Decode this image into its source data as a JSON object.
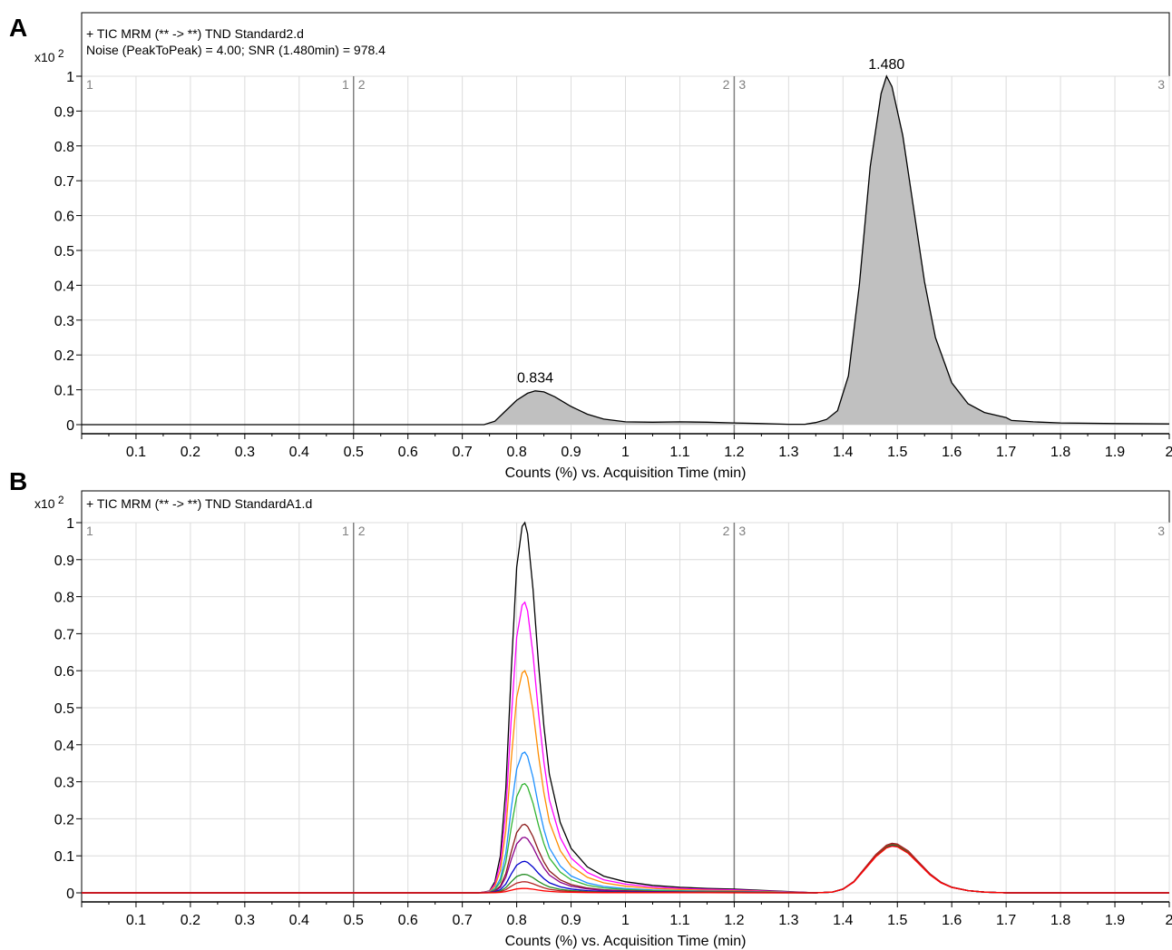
{
  "chart_data": [
    {
      "panel_label": "A",
      "type": "line",
      "title": "+ TIC MRM (** -> **) TND Standard2.d",
      "subtitle": "Noise (PeakToPeak) = 4.00; SNR (1.480min) = 978.4",
      "title_color": "#000000",
      "y_multiplier": "x10",
      "y_exponent": "2",
      "xlabel": "Counts (%) vs. Acquisition Time (min)",
      "xlim": [
        0,
        2
      ],
      "ylim": [
        -0.02,
        1.03
      ],
      "x_ticks": [
        "0.1",
        "0.2",
        "0.3",
        "0.4",
        "0.5",
        "0.6",
        "0.7",
        "0.8",
        "0.9",
        "1",
        "1.1",
        "1.2",
        "1.3",
        "1.4",
        "1.5",
        "1.6",
        "1.7",
        "1.8",
        "1.9",
        "2"
      ],
      "y_ticks": [
        "0",
        "0.1",
        "0.2",
        "0.3",
        "0.4",
        "0.5",
        "0.6",
        "0.7",
        "0.8",
        "0.9",
        "1"
      ],
      "grid": true,
      "filled": true,
      "fill_color": "#c0c0c0",
      "segment_boundaries": [
        0.5,
        1.2
      ],
      "segment_markers": [
        {
          "x": 0,
          "label": "1",
          "side": "right"
        },
        {
          "x": 0.5,
          "label": "1",
          "side": "left"
        },
        {
          "x": 0.5,
          "label": "2",
          "side": "right"
        },
        {
          "x": 1.2,
          "label": "2",
          "side": "left"
        },
        {
          "x": 1.2,
          "label": "3",
          "side": "right"
        },
        {
          "x": 2,
          "label": "3",
          "side": "left"
        }
      ],
      "annotations": [
        {
          "x": 0.834,
          "y": 0.1,
          "text": "0.834"
        },
        {
          "x": 1.48,
          "y": 1.0,
          "text": "1.480"
        }
      ],
      "series": [
        {
          "color": "#000000",
          "x": [
            0,
            0.5,
            0.7,
            0.74,
            0.76,
            0.78,
            0.8,
            0.82,
            0.834,
            0.85,
            0.87,
            0.9,
            0.93,
            0.96,
            1.0,
            1.05,
            1.1,
            1.15,
            1.2,
            1.25,
            1.3,
            1.33,
            1.35,
            1.37,
            1.39,
            1.41,
            1.43,
            1.45,
            1.47,
            1.48,
            1.49,
            1.51,
            1.53,
            1.55,
            1.57,
            1.6,
            1.63,
            1.66,
            1.7,
            1.71,
            1.75,
            1.8,
            1.9,
            2.0
          ],
          "y": [
            0,
            0,
            0,
            0,
            0.01,
            0.04,
            0.07,
            0.09,
            0.097,
            0.094,
            0.08,
            0.052,
            0.03,
            0.016,
            0.008,
            0.007,
            0.008,
            0.007,
            0.005,
            0.003,
            0.001,
            0.001,
            0.006,
            0.015,
            0.04,
            0.14,
            0.4,
            0.74,
            0.95,
            1.0,
            0.97,
            0.83,
            0.62,
            0.41,
            0.25,
            0.12,
            0.06,
            0.035,
            0.02,
            0.012,
            0.008,
            0.005,
            0.003,
            0.002
          ]
        }
      ]
    },
    {
      "panel_label": "B",
      "type": "line",
      "title": "+ TIC MRM (** -> **) TND StandardA1.d",
      "title_color": "#ff0000",
      "y_multiplier": "x10",
      "y_exponent": "2",
      "xlabel": "Counts (%) vs. Acquisition Time (min)",
      "xlim": [
        0,
        2
      ],
      "ylim": [
        -0.02,
        1.03
      ],
      "x_ticks": [
        "0.1",
        "0.2",
        "0.3",
        "0.4",
        "0.5",
        "0.6",
        "0.7",
        "0.8",
        "0.9",
        "1",
        "1.1",
        "1.2",
        "1.3",
        "1.4",
        "1.5",
        "1.6",
        "1.7",
        "1.8",
        "1.9",
        "2"
      ],
      "y_ticks": [
        "0",
        "0.1",
        "0.2",
        "0.3",
        "0.4",
        "0.5",
        "0.6",
        "0.7",
        "0.8",
        "0.9",
        "1"
      ],
      "grid": true,
      "filled": false,
      "segment_boundaries": [
        0.5,
        1.2
      ],
      "segment_markers": [
        {
          "x": 0,
          "label": "1",
          "side": "right"
        },
        {
          "x": 0.5,
          "label": "1",
          "side": "left"
        },
        {
          "x": 0.5,
          "label": "2",
          "side": "right"
        },
        {
          "x": 1.2,
          "label": "2",
          "side": "left"
        },
        {
          "x": 1.2,
          "label": "3",
          "side": "right"
        },
        {
          "x": 2,
          "label": "3",
          "side": "left"
        }
      ],
      "peak_shape": {
        "x": [
          0,
          0.7,
          0.73,
          0.75,
          0.76,
          0.77,
          0.78,
          0.79,
          0.8,
          0.81,
          0.815,
          0.82,
          0.83,
          0.84,
          0.85,
          0.86,
          0.88,
          0.9,
          0.93,
          0.96,
          1.0,
          1.05,
          1.1,
          1.15,
          1.2,
          2.0
        ],
        "y": [
          0,
          0,
          0,
          0.005,
          0.03,
          0.1,
          0.28,
          0.6,
          0.88,
          0.99,
          1.0,
          0.97,
          0.82,
          0.62,
          0.45,
          0.32,
          0.19,
          0.12,
          0.07,
          0.045,
          0.03,
          0.02,
          0.015,
          0.012,
          0.01,
          0.008
        ]
      },
      "second_peak": {
        "x": [
          1.2,
          1.35,
          1.38,
          1.4,
          1.42,
          1.44,
          1.46,
          1.48,
          1.49,
          1.5,
          1.52,
          1.54,
          1.56,
          1.58,
          1.6,
          1.63,
          1.66,
          1.7,
          2.0
        ],
        "y": [
          0,
          0,
          0.002,
          0.01,
          0.03,
          0.065,
          0.1,
          0.125,
          0.13,
          0.128,
          0.11,
          0.08,
          0.05,
          0.028,
          0.015,
          0.006,
          0.002,
          0,
          0
        ]
      },
      "series": [
        {
          "color": "#000000",
          "peak": 1.0,
          "second": 1.0
        },
        {
          "color": "#ff00ff",
          "peak": 0.785,
          "second": 1.02
        },
        {
          "color": "#ff8c00",
          "peak": 0.6,
          "second": 1.01
        },
        {
          "color": "#1e90ff",
          "peak": 0.38,
          "second": 1.0
        },
        {
          "color": "#32b432",
          "peak": 0.295,
          "second": 0.99
        },
        {
          "color": "#8b1a1a",
          "peak": 0.185,
          "second": 1.03
        },
        {
          "color": "#8b008b",
          "peak": 0.15,
          "second": 1.0
        },
        {
          "color": "#0000cd",
          "peak": 0.085,
          "second": 0.98
        },
        {
          "color": "#228b22",
          "peak": 0.05,
          "second": 1.0
        },
        {
          "color": "#b22222",
          "peak": 0.03,
          "second": 1.02
        },
        {
          "color": "#ff0000",
          "peak": 0.012,
          "second": 0.97
        }
      ]
    }
  ]
}
